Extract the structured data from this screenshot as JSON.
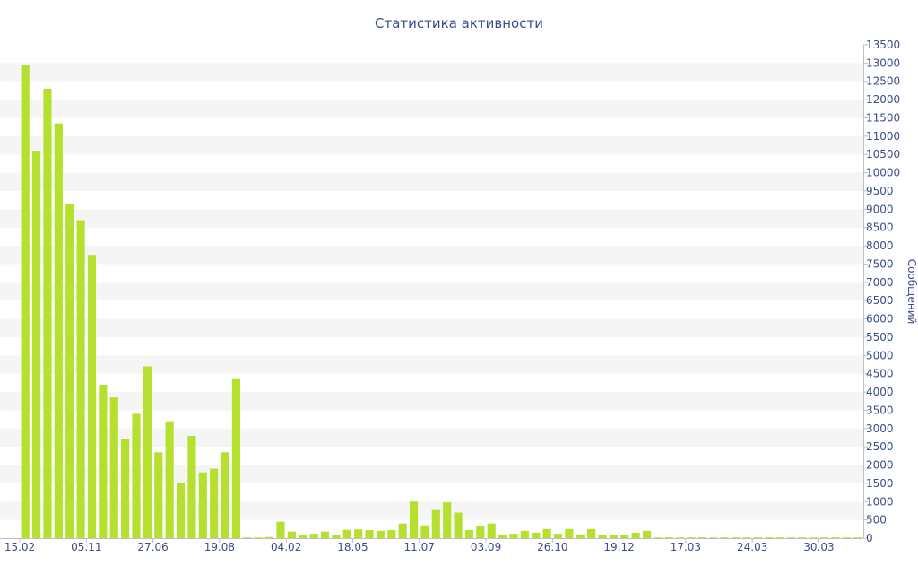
{
  "chart_data": {
    "type": "bar",
    "title": "Статистика активности",
    "ylabel": "Сообщений",
    "xlabel": "",
    "ylim": [
      0,
      13500
    ],
    "ytick_step": 500,
    "grid": "horizontal bands",
    "bar_color": "#b5e02f",
    "band_color": "#f5f5f5",
    "text_color": "#3d4b8c",
    "xtick_labels": [
      {
        "index": 0,
        "label": "15.02"
      },
      {
        "index": 6,
        "label": "05.11"
      },
      {
        "index": 12,
        "label": "27.06"
      },
      {
        "index": 18,
        "label": "19.08"
      },
      {
        "index": 24,
        "label": "04.02"
      },
      {
        "index": 30,
        "label": "18.05"
      },
      {
        "index": 36,
        "label": "11.07"
      },
      {
        "index": 42,
        "label": "03.09"
      },
      {
        "index": 48,
        "label": "26.10"
      },
      {
        "index": 54,
        "label": "19.12"
      },
      {
        "index": 60,
        "label": "17.03"
      },
      {
        "index": 66,
        "label": "24.03"
      },
      {
        "index": 72,
        "label": "30.03"
      }
    ],
    "values": [
      12950,
      10600,
      12300,
      11350,
      9150,
      8700,
      7750,
      4200,
      3850,
      2700,
      3400,
      4700,
      2350,
      3200,
      1500,
      2800,
      1800,
      1900,
      2350,
      4350,
      20,
      20,
      30,
      450,
      180,
      80,
      120,
      180,
      80,
      230,
      240,
      220,
      200,
      220,
      400,
      1000,
      350,
      770,
      980,
      700,
      220,
      320,
      400,
      80,
      120,
      200,
      150,
      250,
      120,
      250,
      100,
      250,
      100,
      80,
      80,
      150,
      200,
      20,
      20,
      20,
      20,
      20,
      20,
      20,
      20,
      20,
      20,
      20,
      20,
      20,
      20,
      20,
      20,
      20,
      20,
      20
    ]
  }
}
